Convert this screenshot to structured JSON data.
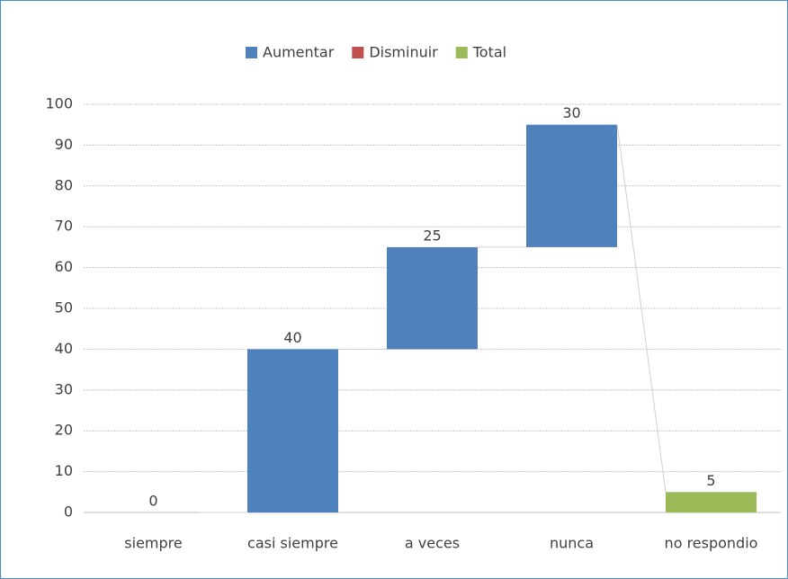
{
  "chart_data": {
    "type": "waterfall",
    "categories": [
      "siempre",
      "casi siempre",
      "a veces",
      "nunca",
      "no respondio"
    ],
    "series": [
      {
        "name": "Aumentar",
        "color": "#4f81bd",
        "values": [
          0,
          40,
          25,
          30,
          null
        ]
      },
      {
        "name": "Disminuir",
        "color": "#c0504d",
        "values": [
          null,
          null,
          null,
          null,
          null
        ]
      },
      {
        "name": "Total",
        "color": "#9bbb59",
        "values": [
          null,
          null,
          null,
          null,
          5
        ]
      }
    ],
    "ylim": [
      0,
      100
    ],
    "yticks": [
      0,
      10,
      20,
      30,
      40,
      50,
      60,
      70,
      80,
      90,
      100
    ],
    "grid": true,
    "legend": "top"
  }
}
